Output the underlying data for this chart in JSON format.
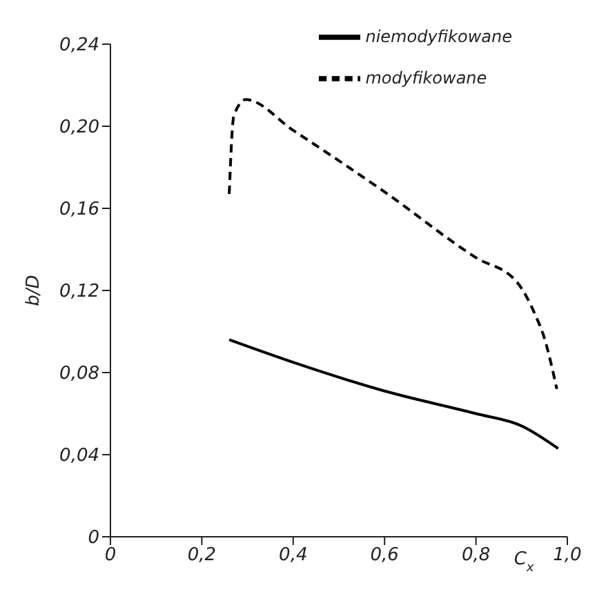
{
  "chart_data": {
    "type": "line",
    "xlabel": "C$_{x}$",
    "ylabel": "b/D",
    "xlim": [
      0,
      1.0
    ],
    "ylim": [
      0,
      0.24
    ],
    "xticks": [
      {
        "value": 0,
        "label": "0"
      },
      {
        "value": 0.2,
        "label": "0,2"
      },
      {
        "value": 0.4,
        "label": "0,4"
      },
      {
        "value": 0.6,
        "label": "0,6"
      },
      {
        "value": 0.8,
        "label": "0,8"
      },
      {
        "value": 1.0,
        "label": "1,0"
      }
    ],
    "yticks": [
      {
        "value": 0,
        "label": "0"
      },
      {
        "value": 0.04,
        "label": "0,04"
      },
      {
        "value": 0.08,
        "label": "0,08"
      },
      {
        "value": 0.12,
        "label": "0,12"
      },
      {
        "value": 0.16,
        "label": "0,16"
      },
      {
        "value": 0.2,
        "label": "0,20"
      },
      {
        "value": 0.24,
        "label": "0,24"
      }
    ],
    "grid": false,
    "legend": "top right",
    "marker": "none",
    "series": [
      {
        "name": "niemodyfikowane",
        "color": "#000000",
        "line_style": "solid",
        "x": [
          0.26,
          0.4,
          0.6,
          0.8,
          0.9,
          0.98
        ],
        "values": [
          0.096,
          0.085,
          0.071,
          0.06,
          0.054,
          0.043
        ]
      },
      {
        "name": "modyfikowane",
        "color": "#000000",
        "line_style": "dashed",
        "x": [
          0.26,
          0.27,
          0.296,
          0.4,
          0.6,
          0.8,
          0.89,
          0.93,
          0.948,
          0.977
        ],
        "values": [
          0.167,
          0.205,
          0.213,
          0.198,
          0.168,
          0.136,
          0.124,
          0.108,
          0.098,
          0.072
        ]
      }
    ]
  }
}
